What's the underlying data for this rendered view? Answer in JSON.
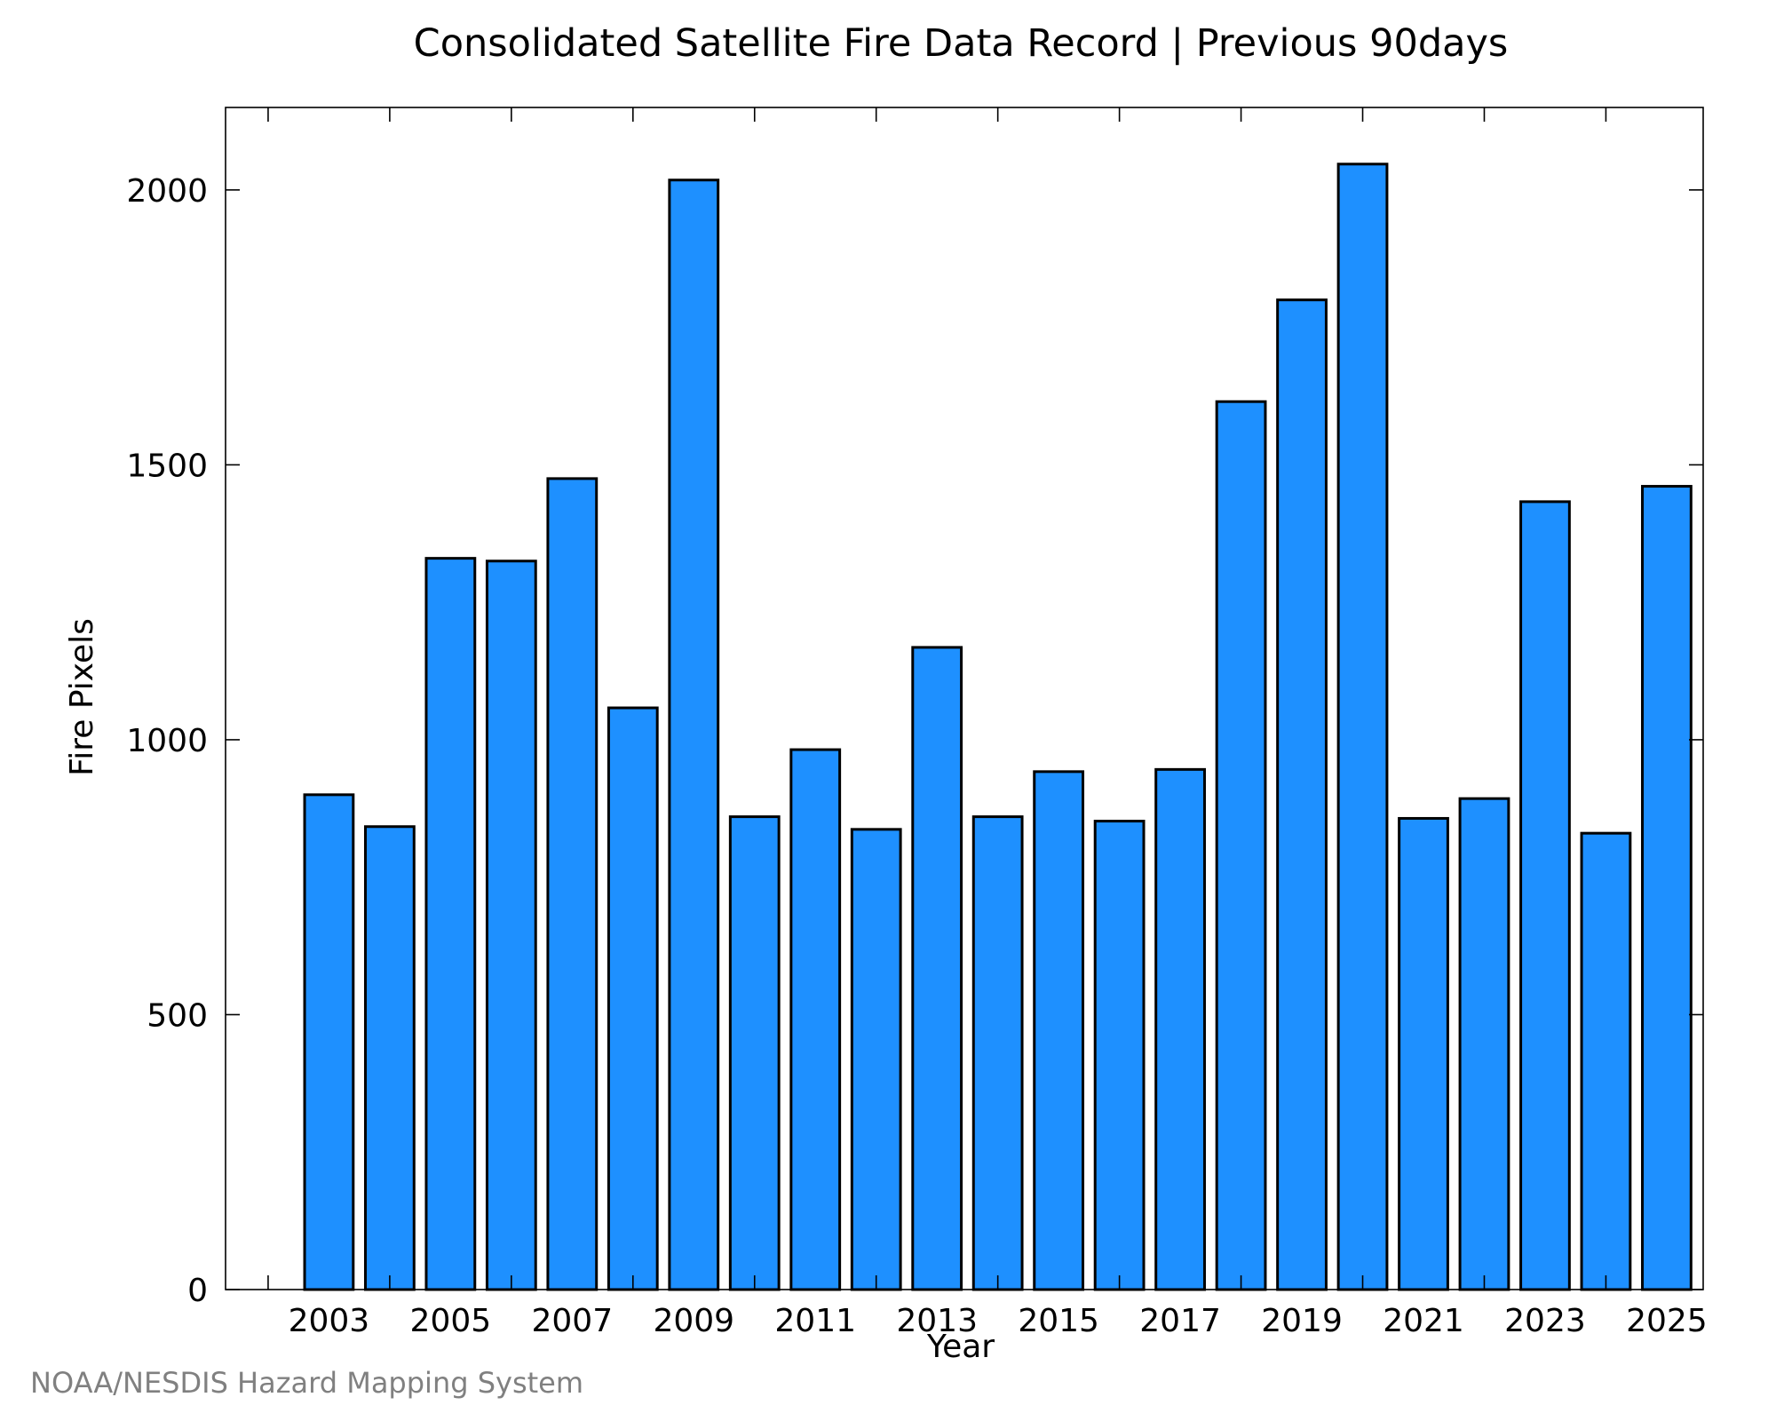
{
  "chart_data": {
    "type": "bar",
    "title": "Consolidated Satellite Fire Data Record | Previous 90days",
    "xlabel": "Year",
    "ylabel": "Fire Pixels",
    "x_tick_labels": [
      "2003",
      "2005",
      "2007",
      "2009",
      "2011",
      "2013",
      "2015",
      "2017",
      "2019",
      "2021",
      "2023",
      "2025"
    ],
    "y_tick_labels": [
      "0",
      "500",
      "1000",
      "1500",
      "2000"
    ],
    "categories": [
      "2003",
      "2004",
      "2005",
      "2006",
      "2007",
      "2008",
      "2009",
      "2010",
      "2011",
      "2012",
      "2013",
      "2014",
      "2015",
      "2016",
      "2017",
      "2018",
      "2019",
      "2020",
      "2021",
      "2022",
      "2023",
      "2024",
      "2025"
    ],
    "values": [
      900,
      842,
      1330,
      1325,
      1475,
      1058,
      2018,
      860,
      982,
      837,
      1168,
      860,
      942,
      852,
      946,
      1615,
      1800,
      2047,
      857,
      893,
      1433,
      830,
      1461
    ],
    "ylim": [
      0,
      2150
    ],
    "xlim": [
      2001.3,
      2025.6
    ],
    "bar_color": "#1e90ff",
    "bar_edge_color": "#000000",
    "grid": false,
    "legend": "none"
  },
  "credit": "NOAA/NESDIS Hazard Mapping System"
}
